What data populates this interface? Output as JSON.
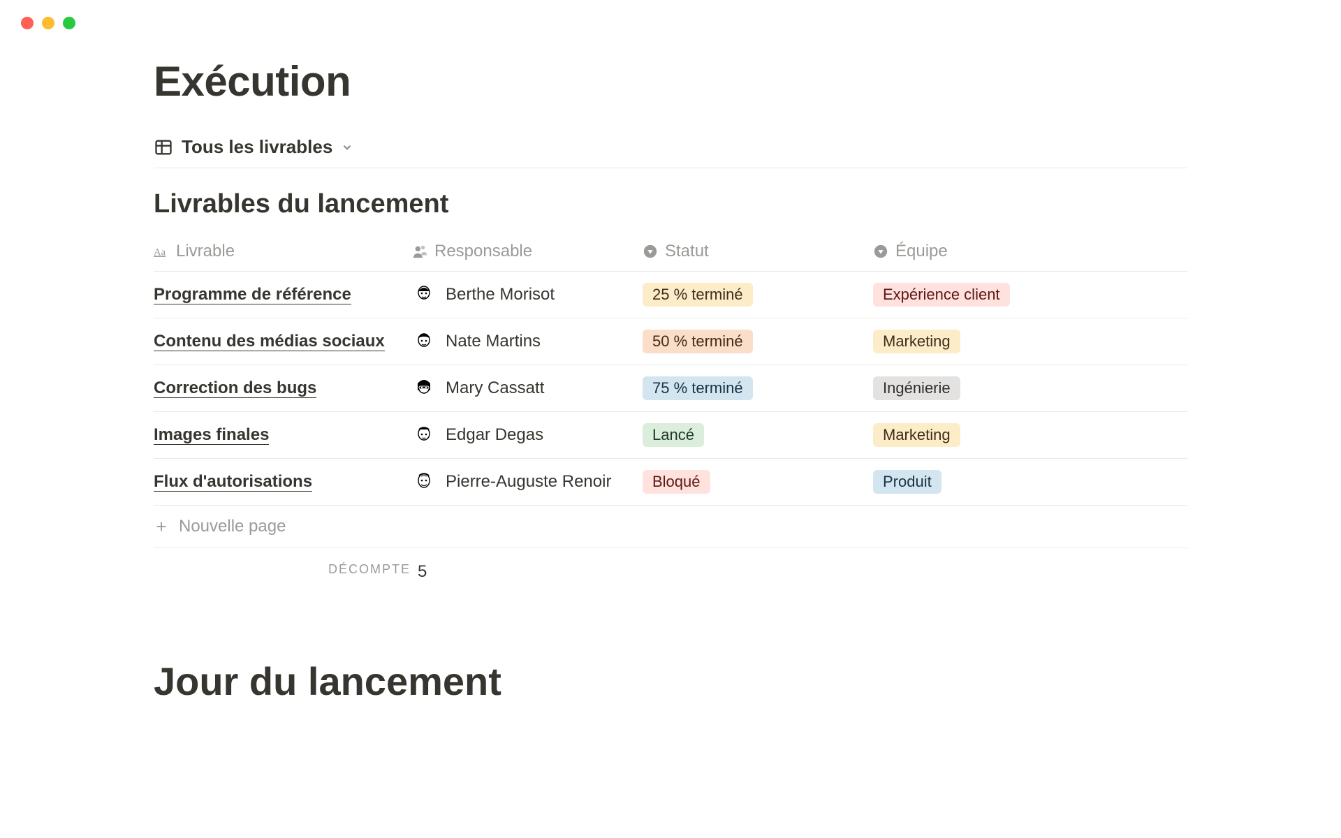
{
  "traffic_lights": {
    "red": "#ff5f57",
    "yellow": "#febc2e",
    "green": "#28c840"
  },
  "page": {
    "title": "Exécution",
    "second_section_title": "Jour du lancement"
  },
  "view": {
    "label": "Tous les livrables"
  },
  "table": {
    "title": "Livrables du lancement",
    "columns": {
      "livrable": "Livrable",
      "responsable": "Responsable",
      "statut": "Statut",
      "equipe": "Équipe"
    },
    "rows": [
      {
        "livrable": "Programme de référence",
        "responsable": "Berthe Morisot",
        "avatar": "f1",
        "statut": "25 % terminé",
        "statut_color": "yellow",
        "equipe": "Expérience client",
        "equipe_color": "red"
      },
      {
        "livrable": "Contenu des médias sociaux",
        "responsable": "Nate Martins",
        "avatar": "m1",
        "statut": "50 % terminé",
        "statut_color": "orange",
        "equipe": "Marketing",
        "equipe_color": "yellow"
      },
      {
        "livrable": "Correction des bugs",
        "responsable": "Mary Cassatt",
        "avatar": "f2",
        "statut": "75 % terminé",
        "statut_color": "blue",
        "equipe": "Ingénierie",
        "equipe_color": "gray"
      },
      {
        "livrable": "Images finales",
        "responsable": "Edgar Degas",
        "avatar": "m2",
        "statut": "Lancé",
        "statut_color": "green",
        "equipe": "Marketing",
        "equipe_color": "yellow"
      },
      {
        "livrable": "Flux d'autorisations",
        "responsable": "Pierre-Auguste Renoir",
        "avatar": "m3",
        "statut": "Bloqué",
        "statut_color": "red",
        "equipe": "Produit",
        "equipe_color": "blue"
      }
    ],
    "new_row_label": "Nouvelle page",
    "count_label": "Décompte",
    "count_value": "5"
  },
  "tag_colors": {
    "yellow": {
      "bg": "#fdecc8",
      "fg": "#402c1b"
    },
    "orange": {
      "bg": "#fadec9",
      "fg": "#49290e"
    },
    "blue": {
      "bg": "#d3e5ef",
      "fg": "#183347"
    },
    "green": {
      "bg": "#dbeddb",
      "fg": "#1c3829"
    },
    "red": {
      "bg": "#ffe2dd",
      "fg": "#5d1715"
    },
    "gray": {
      "bg": "#e3e2e0",
      "fg": "#32302c"
    }
  }
}
